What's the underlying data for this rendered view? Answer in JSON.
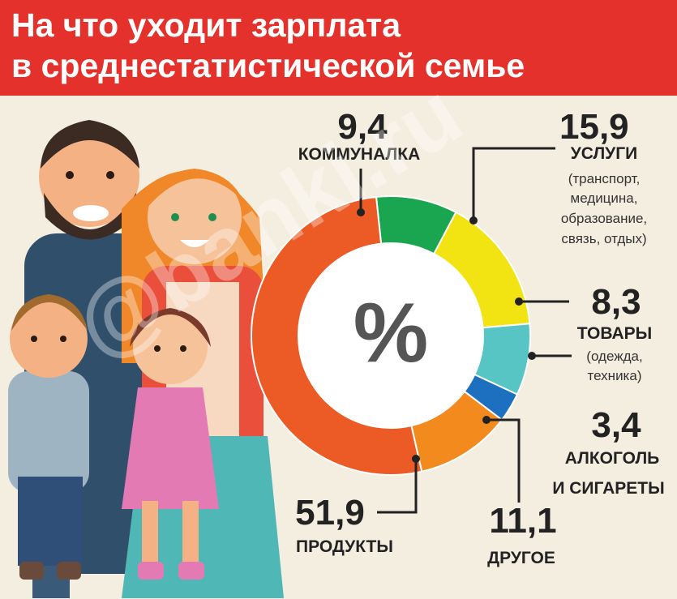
{
  "header": {
    "title_line1": "На что уходит зарплата",
    "title_line2": "в среднестатистической семье"
  },
  "center_symbol": "%",
  "watermark": "@banki.ru",
  "labels": {
    "kommunalka": {
      "value": "9,4",
      "name": "КОММУНАЛКА"
    },
    "uslugi": {
      "value": "15,9",
      "name": "УСЛУГИ",
      "details": [
        "(транспорт,",
        "медицина,",
        "образование,",
        "связь, отдых)"
      ]
    },
    "tovary": {
      "value": "8,3",
      "name": "ТОВАРЫ",
      "details": [
        "(одежда,",
        "техника)"
      ]
    },
    "alkogol": {
      "value": "3,4",
      "name_lines": [
        "АЛКОГОЛЬ",
        "И СИГАРЕТЫ"
      ]
    },
    "drugoe": {
      "value": "11,1",
      "name": "ДРУГОЕ"
    },
    "produkty": {
      "value": "51,9",
      "name": "ПРОДУКТЫ"
    }
  },
  "chart_data": {
    "type": "pie",
    "title": "На что уходит зарплата в среднестатистической семье",
    "unit": "%",
    "categories": [
      "КОММУНАЛКА",
      "УСЛУГИ",
      "ТОВАРЫ",
      "АЛКОГОЛЬ И СИГАРЕТЫ",
      "ДРУГОЕ",
      "ПРОДУКТЫ"
    ],
    "values": [
      9.4,
      15.9,
      8.3,
      3.4,
      11.1,
      51.9
    ],
    "colors": [
      "#1aa551",
      "#f2e312",
      "#56c5c4",
      "#1d6fc0",
      "#f28a1e",
      "#ec5a25"
    ]
  }
}
